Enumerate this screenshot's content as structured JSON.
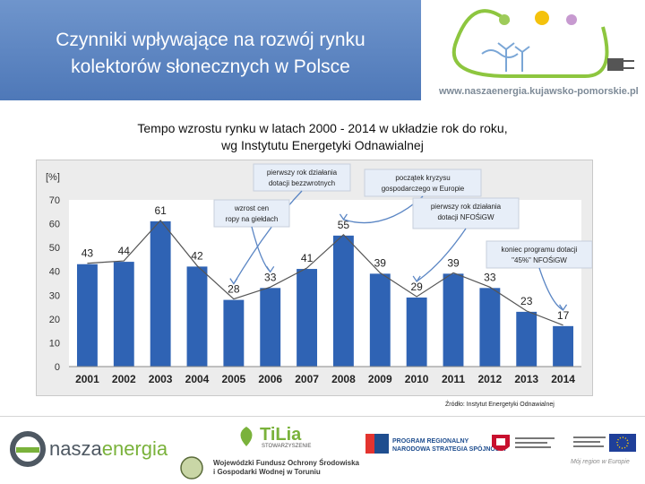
{
  "header": {
    "title_line1": "Czynniki wpływające na rozwój rynku",
    "title_line2": "kolektorów słonecznych w Polsce",
    "url": "www.naszaenergia.kujawsko-pomorskie.pl"
  },
  "subtitle": {
    "line1": "Tempo wzrostu rynku w latach 2000 - 2014 w układzie rok do roku,",
    "line2": "wg Instytutu Energetyki Odnawialnej"
  },
  "chart_data": {
    "type": "bar",
    "title": "",
    "ylabel": "[%]",
    "xlabel": "",
    "ylim": [
      0,
      70
    ],
    "yticks": [
      0,
      10,
      20,
      30,
      40,
      50,
      60,
      70
    ],
    "categories": [
      "2001",
      "2002",
      "2003",
      "2004",
      "2005",
      "2006",
      "2007",
      "2008",
      "2009",
      "2010",
      "2011",
      "2012",
      "2013",
      "2014"
    ],
    "values": [
      43,
      44,
      61,
      42,
      28,
      33,
      41,
      55,
      39,
      29,
      39,
      33,
      23,
      17
    ],
    "bar_color": "#2f63b4",
    "line_color": "#555555",
    "annotations": [
      {
        "text_line1": "pierwszy rok działania",
        "text_line2": "dotacji bezzwrotnych",
        "points_to": "2005"
      },
      {
        "text_line1": "początek kryzysu",
        "text_line2": "gospodarczego w Europie",
        "points_to": "2008"
      },
      {
        "text_line1": "wzrost cen",
        "text_line2": "ropy na giełdach",
        "points_to": "2006"
      },
      {
        "text_line1": "pierwszy rok działania",
        "text_line2": "dotacji NFOŚiGW",
        "points_to": "2010"
      },
      {
        "text_line1": "koniec programu  dotacji",
        "text_line2": "\"45%\" NFOŚiGW",
        "points_to": "2014"
      }
    ]
  },
  "source": "Źródło: Instytut Energetyki Odnawialnej",
  "footer": {
    "nasza": "nasza",
    "energia": "energia",
    "tilia": "TiLia",
    "tilia_sub": "STOWARZYSZENIE",
    "wfos_line1": "Wojewódzki Fundusz Ochrony Środowiska",
    "wfos_line2": "i Gospodarki Wodnej w Toruniu",
    "program_line1": "PROGRAM REGIONALNY",
    "program_line2": "NARODOWA STRATEGIA SPÓJNOŚCI",
    "motto": "Mój region w Europie"
  },
  "colors": {
    "title_bg": "#5a82c0",
    "bar": "#2f63b4",
    "accent_green": "#7ab23b"
  }
}
